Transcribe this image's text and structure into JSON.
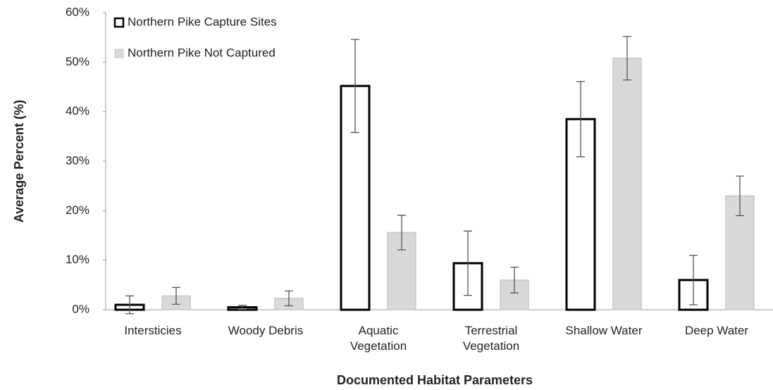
{
  "chart_data": {
    "type": "bar",
    "x_label": "Documented Habitat Parameters",
    "y_label": "Average Percent (%)",
    "categories": [
      "Intersticies",
      "Woody Debris",
      "Aquatic Vegetation",
      "Terrestrial Vegetation",
      "Shallow Water",
      "Deep Water"
    ],
    "series": [
      {
        "name": "Northern Pike Capture Sites",
        "color": "#ffffff",
        "edge": "#000000",
        "values": [
          1.0,
          0.5,
          45.2,
          9.4,
          38.5,
          6.0
        ],
        "errors": [
          1.8,
          0.4,
          9.4,
          6.5,
          7.6,
          5.0
        ]
      },
      {
        "name": "Northern Pike Not Captured",
        "color": "#d9d9d9",
        "edge": "#c8c8c8",
        "values": [
          2.8,
          2.3,
          15.6,
          6.0,
          50.8,
          23.0
        ],
        "errors": [
          1.7,
          1.5,
          3.5,
          2.6,
          4.4,
          4.0
        ]
      }
    ],
    "ylim": [
      0,
      60
    ],
    "yticks": [
      {
        "value": 0,
        "label": "0%"
      },
      {
        "value": 10,
        "label": "10%"
      },
      {
        "value": 20,
        "label": "20%"
      },
      {
        "value": 30,
        "label": "30%"
      },
      {
        "value": 40,
        "label": "40%"
      },
      {
        "value": 50,
        "label": "50%"
      },
      {
        "value": 60,
        "label": "60%"
      }
    ],
    "legend": "upper-left",
    "grid": false
  }
}
